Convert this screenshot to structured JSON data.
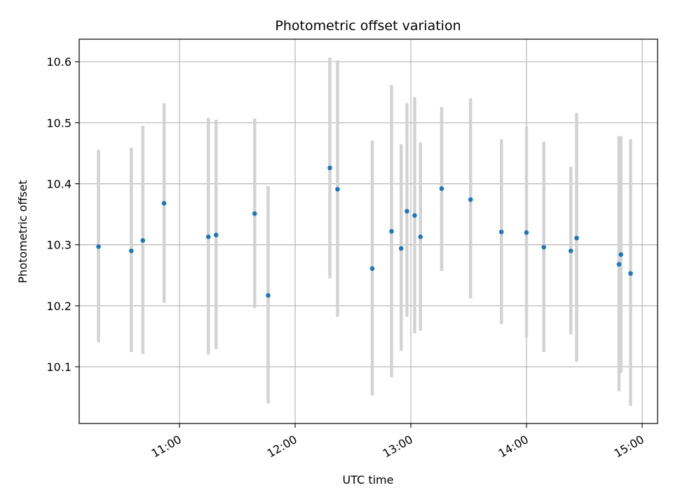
{
  "chart_data": {
    "type": "scatter",
    "title": "Photometric offset variation",
    "xlabel": "UTC time",
    "ylabel": "Photometric offset",
    "x_axis_type": "time",
    "xlim": [
      "10:08",
      "15:08"
    ],
    "ylim": [
      10.007,
      10.637
    ],
    "x_ticks": [
      "11:00",
      "12:00",
      "13:00",
      "14:00",
      "15:00"
    ],
    "y_ticks": [
      10.1,
      10.2,
      10.3,
      10.4,
      10.5,
      10.6
    ],
    "grid": true,
    "legend": "none",
    "colors": {
      "point": "#1f77b4",
      "errorbar": "#d3d3d3",
      "grid": "#b0b0b0"
    },
    "points": [
      {
        "x": "10:18",
        "y": 10.297,
        "y_low": 10.14,
        "y_high": 10.456
      },
      {
        "x": "10:35",
        "y": 10.29,
        "y_low": 10.124,
        "y_high": 10.459
      },
      {
        "x": "10:41",
        "y": 10.307,
        "y_low": 10.121,
        "y_high": 10.495
      },
      {
        "x": "10:52",
        "y": 10.368,
        "y_low": 10.205,
        "y_high": 10.532
      },
      {
        "x": "11:15",
        "y": 10.313,
        "y_low": 10.12,
        "y_high": 10.508
      },
      {
        "x": "11:19",
        "y": 10.316,
        "y_low": 10.129,
        "y_high": 10.505
      },
      {
        "x": "11:39",
        "y": 10.351,
        "y_low": 10.196,
        "y_high": 10.507
      },
      {
        "x": "11:46",
        "y": 10.217,
        "y_low": 10.04,
        "y_high": 10.396
      },
      {
        "x": "12:18",
        "y": 10.426,
        "y_low": 10.245,
        "y_high": 10.607
      },
      {
        "x": "12:22",
        "y": 10.391,
        "y_low": 10.182,
        "y_high": 10.602
      },
      {
        "x": "12:40",
        "y": 10.261,
        "y_low": 10.053,
        "y_high": 10.471
      },
      {
        "x": "12:50",
        "y": 10.322,
        "y_low": 10.083,
        "y_high": 10.562
      },
      {
        "x": "12:55",
        "y": 10.294,
        "y_low": 10.126,
        "y_high": 10.465
      },
      {
        "x": "12:58",
        "y": 10.355,
        "y_low": 10.182,
        "y_high": 10.532
      },
      {
        "x": "13:02",
        "y": 10.348,
        "y_low": 10.155,
        "y_high": 10.542
      },
      {
        "x": "13:05",
        "y": 10.313,
        "y_low": 10.159,
        "y_high": 10.468
      },
      {
        "x": "13:16",
        "y": 10.392,
        "y_low": 10.257,
        "y_high": 10.526
      },
      {
        "x": "13:31",
        "y": 10.374,
        "y_low": 10.212,
        "y_high": 10.54
      },
      {
        "x": "13:47",
        "y": 10.321,
        "y_low": 10.17,
        "y_high": 10.473
      },
      {
        "x": "14:00",
        "y": 10.32,
        "y_low": 10.148,
        "y_high": 10.494
      },
      {
        "x": "14:09",
        "y": 10.296,
        "y_low": 10.124,
        "y_high": 10.469
      },
      {
        "x": "14:23",
        "y": 10.29,
        "y_low": 10.153,
        "y_high": 10.428
      },
      {
        "x": "14:26",
        "y": 10.311,
        "y_low": 10.108,
        "y_high": 10.516
      },
      {
        "x": "14:48",
        "y": 10.268,
        "y_low": 10.06,
        "y_high": 10.478
      },
      {
        "x": "14:49",
        "y": 10.284,
        "y_low": 10.09,
        "y_high": 10.478
      },
      {
        "x": "14:54",
        "y": 10.253,
        "y_low": 10.036,
        "y_high": 10.473
      }
    ]
  }
}
